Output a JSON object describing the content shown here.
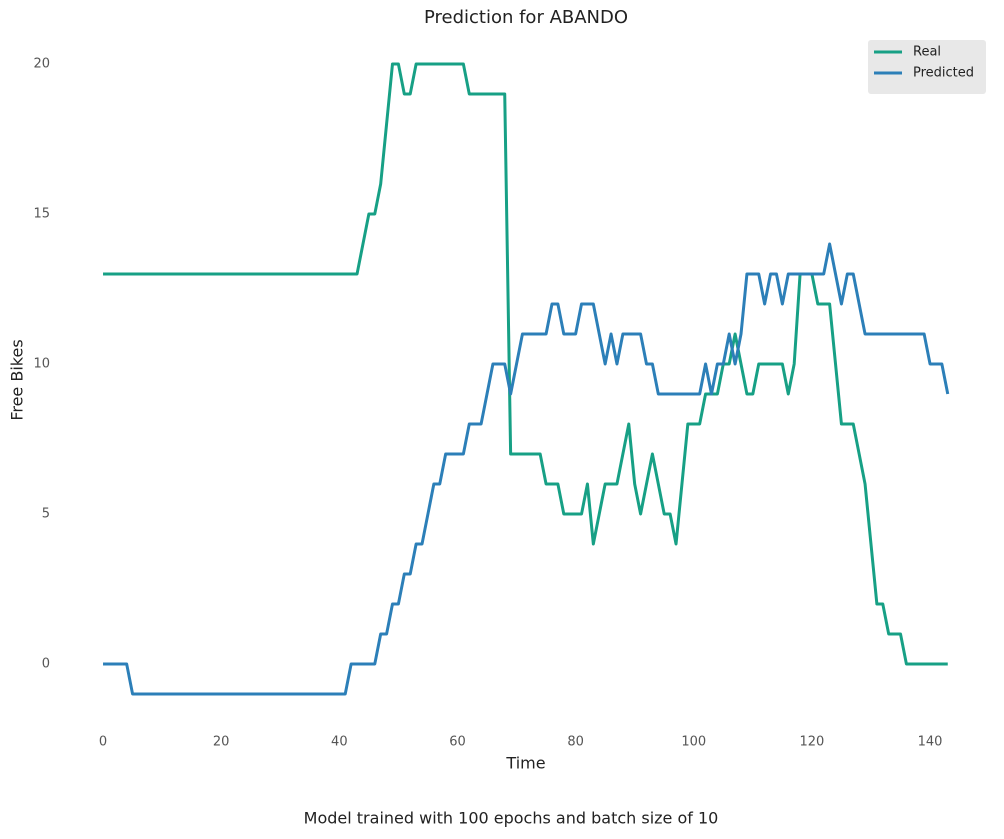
{
  "chart_data": {
    "type": "line",
    "title": "Prediction for ABANDO",
    "xlabel": "Time",
    "ylabel": "Free Bikes",
    "caption": "Model trained with 100 epochs and batch size of 10",
    "x": [
      0,
      1,
      2,
      3,
      4,
      5,
      6,
      7,
      8,
      9,
      10,
      11,
      12,
      13,
      14,
      15,
      16,
      17,
      18,
      19,
      20,
      21,
      22,
      23,
      24,
      25,
      26,
      27,
      28,
      29,
      30,
      31,
      32,
      33,
      34,
      35,
      36,
      37,
      38,
      39,
      40,
      41,
      42,
      43,
      44,
      45,
      46,
      47,
      48,
      49,
      50,
      51,
      52,
      53,
      54,
      55,
      56,
      57,
      58,
      59,
      60,
      61,
      62,
      63,
      64,
      65,
      66,
      67,
      68,
      69,
      70,
      71,
      72,
      73,
      74,
      75,
      76,
      77,
      78,
      79,
      80,
      81,
      82,
      83,
      84,
      85,
      86,
      87,
      88,
      89,
      90,
      91,
      92,
      93,
      94,
      95,
      96,
      97,
      98,
      99,
      100,
      101,
      102,
      103,
      104,
      105,
      106,
      107,
      108,
      109,
      110,
      111,
      112,
      113,
      114,
      115,
      116,
      117,
      118,
      119,
      120,
      121,
      122,
      123,
      124,
      125,
      126,
      127,
      128,
      129,
      130,
      131,
      132,
      133,
      134,
      135,
      136,
      137,
      138,
      139,
      140,
      141,
      142,
      143
    ],
    "series": [
      {
        "name": "Real",
        "color": "#17a085",
        "values": [
          13,
          13,
          13,
          13,
          13,
          13,
          13,
          13,
          13,
          13,
          13,
          13,
          13,
          13,
          13,
          13,
          13,
          13,
          13,
          13,
          13,
          13,
          13,
          13,
          13,
          13,
          13,
          13,
          13,
          13,
          13,
          13,
          13,
          13,
          13,
          13,
          13,
          13,
          13,
          13,
          13,
          13,
          13,
          13,
          14,
          15,
          15,
          16,
          18,
          20,
          20,
          19,
          19,
          20,
          20,
          20,
          20,
          20,
          20,
          20,
          20,
          20,
          19,
          19,
          19,
          19,
          19,
          19,
          19,
          7,
          7,
          7,
          7,
          7,
          7,
          6,
          6,
          6,
          5,
          5,
          5,
          5,
          6,
          4,
          5,
          6,
          6,
          6,
          7,
          8,
          6,
          5,
          6,
          7,
          6,
          5,
          5,
          4,
          6,
          8,
          8,
          8,
          9,
          9,
          9,
          10,
          10,
          11,
          10,
          9,
          9,
          10,
          10,
          10,
          10,
          10,
          9,
          10,
          13,
          13,
          13,
          12,
          12,
          12,
          10,
          8,
          8,
          8,
          7,
          6,
          4,
          2,
          2,
          1,
          1,
          1,
          0,
          0,
          0,
          0,
          0,
          0,
          0,
          0
        ]
      },
      {
        "name": "Predicted",
        "color": "#2c7fb8",
        "values": [
          0,
          0,
          0,
          0,
          0,
          -1,
          -1,
          -1,
          -1,
          -1,
          -1,
          -1,
          -1,
          -1,
          -1,
          -1,
          -1,
          -1,
          -1,
          -1,
          -1,
          -1,
          -1,
          -1,
          -1,
          -1,
          -1,
          -1,
          -1,
          -1,
          -1,
          -1,
          -1,
          -1,
          -1,
          -1,
          -1,
          -1,
          -1,
          -1,
          -1,
          -1,
          0,
          0,
          0,
          0,
          0,
          1,
          1,
          2,
          2,
          3,
          3,
          4,
          4,
          5,
          6,
          6,
          7,
          7,
          7,
          7,
          8,
          8,
          8,
          9,
          10,
          10,
          10,
          9,
          10,
          11,
          11,
          11,
          11,
          11,
          12,
          12,
          11,
          11,
          11,
          12,
          12,
          12,
          11,
          10,
          11,
          10,
          11,
          11,
          11,
          11,
          10,
          10,
          9,
          9,
          9,
          9,
          9,
          9,
          9,
          9,
          10,
          9,
          10,
          10,
          11,
          10,
          11,
          13,
          13,
          13,
          12,
          13,
          13,
          12,
          13,
          13,
          13,
          13,
          13,
          13,
          13,
          14,
          13,
          12,
          13,
          13,
          12,
          11,
          11,
          11,
          11,
          11,
          11,
          11,
          11,
          11,
          11,
          11,
          10,
          10,
          10,
          9
        ]
      }
    ],
    "xlim": [
      -7.15,
      150.15
    ],
    "ylim": [
      -2.05,
      21.05
    ],
    "xticks": [
      0,
      20,
      40,
      60,
      80,
      100,
      120,
      140
    ],
    "yticks": [
      0,
      5,
      10,
      15,
      20
    ],
    "grid": false,
    "legend": "upper right"
  }
}
